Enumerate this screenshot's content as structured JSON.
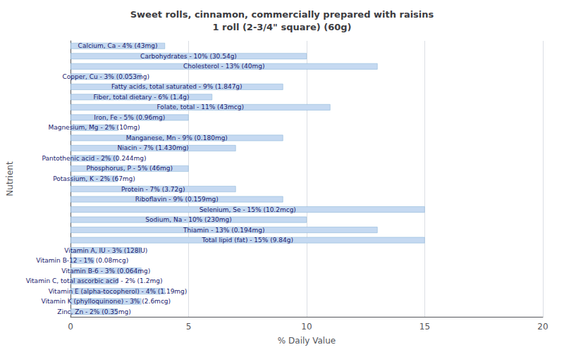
{
  "chart_data": {
    "type": "bar",
    "orientation": "horizontal",
    "title": "Sweet rolls, cinnamon, commercially prepared with raisins\n1 roll (2-3/4\" square) (60g)",
    "xlabel": "% Daily Value",
    "ylabel": "Nutrient",
    "categories": [
      "Calcium, Ca - 4% (43mg)",
      "Carbohydrates - 10% (30.54g)",
      "Cholesterol - 13% (40mg)",
      "Copper, Cu - 3% (0.053mg)",
      "Fatty acids, total saturated - 9% (1.847g)",
      "Fiber, total dietary - 6% (1.4g)",
      "Folate, total - 11% (43mcg)",
      "Iron, Fe - 5% (0.96mg)",
      "Magnesium, Mg - 2% (10mg)",
      "Manganese, Mn - 9% (0.180mg)",
      "Niacin - 7% (1.430mg)",
      "Pantothenic acid - 2% (0.244mg)",
      "Phosphorus, P - 5% (46mg)",
      "Potassium, K - 2% (67mg)",
      "Protein - 7% (3.72g)",
      "Riboflavin - 9% (0.159mg)",
      "Selenium, Se - 15% (10.2mcg)",
      "Sodium, Na - 10% (230mg)",
      "Thiamin - 13% (0.194mg)",
      "Total lipid (fat) - 15% (9.84g)",
      "Vitamin A, IU - 3% (128IU)",
      "Vitamin B-12 - 1% (0.08mcg)",
      "Vitamin B-6 - 3% (0.064mg)",
      "Vitamin C, total ascorbic acid - 2% (1.2mg)",
      "Vitamin E (alpha-tocopherol) - 4% (1.19mg)",
      "Vitamin K (phylloquinone) - 3% (2.6mcg)",
      "Zinc, Zn - 2% (0.35mg)"
    ],
    "values": [
      4,
      10,
      13,
      3,
      9,
      6,
      11,
      5,
      2,
      9,
      7,
      2,
      5,
      2,
      7,
      9,
      15,
      10,
      13,
      15,
      3,
      1,
      3,
      2,
      4,
      3,
      2
    ],
    "color": "#c5d9f1",
    "xlim": [
      0,
      20
    ],
    "xticks": [
      0,
      5,
      10,
      15,
      20
    ],
    "grid": true,
    "tick_labels": "x"
  }
}
